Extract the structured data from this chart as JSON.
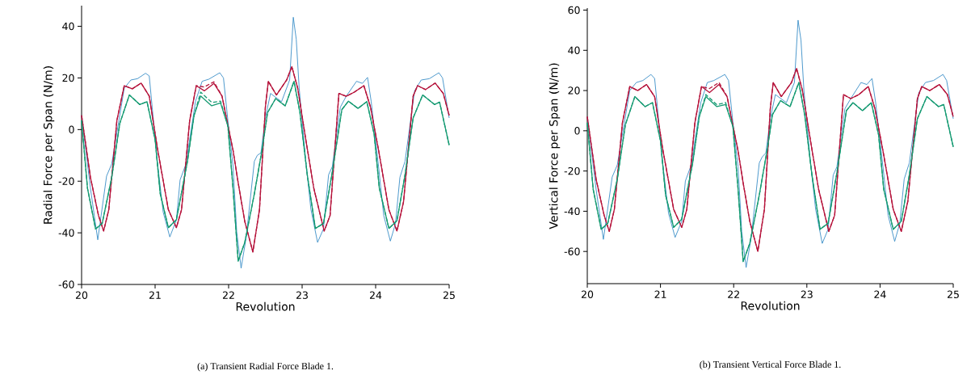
{
  "chart_data": [
    {
      "type": "line",
      "xlabel": "Revolution",
      "ylabel": "Radial Force per Span (N/m)",
      "xlim": [
        20,
        25
      ],
      "ylim": [
        -60,
        48
      ],
      "xticks": [
        20,
        21,
        22,
        23,
        24,
        25
      ],
      "yticks": [
        -60,
        -40,
        -20,
        0,
        20,
        40
      ],
      "annotations": [
        "(a) Transient Radial Force Blade 1."
      ],
      "series": [
        {
          "color": "#3b8fc7",
          "line_style": "solid",
          "x": [
            20,
            20.12,
            20.22,
            20.34,
            20.41,
            20.58,
            20.67,
            20.76,
            20.87,
            20.92,
            20.96,
            21.03,
            21.11,
            21.2,
            21.29,
            21.34,
            21.42,
            21.55,
            21.64,
            21.73,
            21.88,
            21.93,
            21.99,
            22.06,
            22.11,
            22.17,
            22.24,
            22.35,
            22.39,
            22.44,
            22.5,
            22.57,
            22.72,
            22.83,
            22.88,
            22.92,
            22.96,
            23.05,
            23.12,
            23.21,
            23.29,
            23.36,
            23.41,
            23.52,
            23.6,
            23.74,
            23.82,
            23.89,
            23.94,
            24.04,
            24.11,
            24.2,
            24.27,
            24.33,
            24.4,
            24.53,
            24.62,
            24.73,
            24.86,
            24.91,
            25
          ],
          "values": [
            5.5,
            -22.7,
            -42.7,
            -18,
            -13.3,
            16,
            19.2,
            19.7,
            21.8,
            20.8,
            8.7,
            -12.3,
            -32,
            -41.6,
            -35,
            -19.5,
            -13.3,
            11,
            18.7,
            19.5,
            22,
            20,
            3.5,
            -14,
            -39.5,
            -53.7,
            -41.6,
            -12.3,
            -10,
            -9,
            4.5,
            14,
            10.8,
            19.2,
            43.5,
            35,
            16,
            -12.3,
            -31,
            -43.7,
            -38.5,
            -17.5,
            -14.4,
            8.7,
            12.9,
            18.7,
            17.9,
            20.2,
            10.8,
            -14.4,
            -33.3,
            -43.2,
            -36.4,
            -18.5,
            -12.3,
            15,
            19.2,
            19.7,
            22,
            20,
            4.5
          ]
        },
        {
          "color": "#b5123a",
          "line_style": "solid",
          "x": [
            20,
            20.12,
            20.23,
            20.3,
            20.37,
            20.48,
            20.58,
            20.69,
            20.81,
            20.92,
            21.03,
            21.18,
            21.29,
            21.36,
            21.47,
            21.56,
            21.67,
            21.8,
            21.91,
            22.06,
            22.13,
            22.22,
            22.33,
            22.42,
            22.5,
            22.54,
            22.65,
            22.79,
            22.86,
            22.94,
            23.05,
            23.16,
            23.3,
            23.38,
            23.5,
            23.6,
            23.71,
            23.84,
            23.93,
            24.04,
            24.18,
            24.29,
            24.38,
            24.51,
            24.57,
            24.68,
            24.81,
            24.92,
            25
          ],
          "values": [
            5.5,
            -18.5,
            -33.3,
            -39.3,
            -31,
            3.5,
            17,
            15.8,
            18,
            13,
            -7,
            -31,
            -38,
            -31,
            3.5,
            17,
            15,
            17.9,
            13,
            -8,
            -20.6,
            -35.6,
            -47.4,
            -31,
            8.7,
            18.7,
            13.4,
            19.2,
            24.4,
            16,
            -3.9,
            -22.9,
            -39.3,
            -33.3,
            14,
            12.9,
            14.5,
            17,
            8.7,
            -8,
            -31,
            -39.3,
            -27.9,
            12.9,
            17,
            15.5,
            18,
            14,
            5.5
          ]
        },
        {
          "color": "#b5123a",
          "line_style": "dashed",
          "x": [
            20,
            20.12,
            20.23,
            20.3,
            20.37,
            20.48,
            20.58,
            20.69,
            20.81,
            20.92,
            21.03,
            21.18,
            21.29,
            21.36,
            21.47,
            21.56,
            21.67,
            21.8,
            21.91,
            22.06,
            22.13,
            22.22,
            22.33,
            22.42,
            22.5,
            22.54,
            22.65,
            22.79,
            22.86,
            22.94,
            23.05,
            23.16,
            23.3,
            23.38,
            23.5,
            23.6,
            23.71,
            23.84,
            23.93,
            24.04,
            24.18,
            24.29,
            24.38,
            24.51,
            24.57,
            24.68,
            24.81,
            24.92,
            25
          ],
          "values": [
            5.5,
            -18.5,
            -33.3,
            -39.3,
            -31,
            3.5,
            17,
            15.8,
            18,
            13,
            -7,
            -31,
            -38,
            -31,
            3.5,
            17,
            16.5,
            18.5,
            13,
            -8,
            -20.6,
            -35.6,
            -47.4,
            -31,
            8.7,
            18.7,
            13.4,
            19.2,
            24.4,
            16,
            -3.9,
            -22.9,
            -39.3,
            -33.3,
            14,
            12.9,
            14.5,
            17,
            8.7,
            -8,
            -31,
            -39.3,
            -27.9,
            12.9,
            17,
            15.5,
            18,
            14,
            5.5
          ]
        },
        {
          "color": "#159a72",
          "line_style": "solid",
          "x": [
            20,
            20.08,
            20.19,
            20.28,
            20.41,
            20.52,
            20.65,
            20.79,
            20.89,
            21,
            21.07,
            21.18,
            21.29,
            21.44,
            21.53,
            21.62,
            21.77,
            21.89,
            21.99,
            22.06,
            22.13,
            22.22,
            22.35,
            22.46,
            22.53,
            22.64,
            22.77,
            22.89,
            22.97,
            23.07,
            23.18,
            23.29,
            23.41,
            23.54,
            23.63,
            23.76,
            23.88,
            23.98,
            24.05,
            24.18,
            24.29,
            24.4,
            24.51,
            24.64,
            24.8,
            24.87,
            25
          ],
          "values": [
            3.5,
            -22.7,
            -38.5,
            -36.4,
            -18.5,
            2.4,
            13.4,
            9.7,
            10.8,
            -3.9,
            -24.9,
            -38,
            -34.9,
            -12.3,
            5.5,
            13,
            9.2,
            10.3,
            1.4,
            -22.7,
            -51,
            -43.7,
            -24.9,
            -7,
            6.6,
            12,
            9.2,
            18.7,
            6.6,
            -17.5,
            -38.3,
            -36.4,
            -16.5,
            7.7,
            11,
            8.2,
            10.8,
            -1.8,
            -22.7,
            -38.3,
            -35.3,
            -17.5,
            4.5,
            13.4,
            9.7,
            10.6,
            -6
          ]
        },
        {
          "color": "#159a72",
          "line_style": "dashed",
          "x": [
            20,
            20.08,
            20.19,
            20.28,
            20.41,
            20.52,
            20.65,
            20.79,
            20.89,
            21,
            21.07,
            21.18,
            21.29,
            21.44,
            21.53,
            21.62,
            21.77,
            21.89,
            21.99,
            22.06,
            22.13,
            22.22,
            22.35,
            22.46,
            22.53,
            22.64,
            22.77,
            22.89,
            22.97,
            23.07,
            23.18,
            23.29,
            23.41,
            23.54,
            23.63,
            23.76,
            23.88,
            23.98,
            24.05,
            24.18,
            24.29,
            24.4,
            24.51,
            24.64,
            24.8,
            24.87,
            25
          ],
          "values": [
            3.5,
            -22.7,
            -38.5,
            -36.4,
            -18.5,
            2.4,
            13.4,
            9.7,
            10.8,
            -3.9,
            -24.9,
            -38,
            -34.9,
            -12.3,
            5.5,
            14.5,
            10.5,
            11,
            1.4,
            -22.7,
            -51,
            -43.7,
            -24.9,
            -7,
            6.6,
            12,
            9.2,
            18.7,
            6.6,
            -17.5,
            -38.3,
            -36.4,
            -16.5,
            7.7,
            11,
            8.2,
            10.8,
            -1.8,
            -22.7,
            -38.3,
            -35.3,
            -17.5,
            4.5,
            13.4,
            9.7,
            10.6,
            -6
          ]
        }
      ]
    },
    {
      "type": "line",
      "xlabel": "Revolution",
      "ylabel": "Vertical Force per Span (N/m)",
      "xlim": [
        20,
        25
      ],
      "ylim": [
        -76,
        61
      ],
      "xticks": [
        20,
        21,
        22,
        23,
        24,
        25
      ],
      "yticks": [
        -60,
        -40,
        -20,
        0,
        20,
        40,
        60
      ],
      "annotations": [
        "(b) Transient Vertical Force Blade 1."
      ],
      "series": [
        {
          "color": "#3b8fc7",
          "line_style": "solid",
          "x": [
            20,
            20.12,
            20.22,
            20.34,
            20.41,
            20.58,
            20.67,
            20.76,
            20.87,
            20.92,
            20.96,
            21.03,
            21.11,
            21.2,
            21.29,
            21.34,
            21.42,
            21.55,
            21.64,
            21.73,
            21.88,
            21.93,
            21.99,
            22.06,
            22.11,
            22.17,
            22.24,
            22.35,
            22.39,
            22.44,
            22.5,
            22.57,
            22.72,
            22.83,
            22.88,
            22.92,
            22.96,
            23.05,
            23.12,
            23.21,
            23.29,
            23.36,
            23.41,
            23.52,
            23.6,
            23.74,
            23.82,
            23.89,
            23.94,
            24.04,
            24.11,
            24.2,
            24.27,
            24.33,
            24.4,
            24.53,
            24.62,
            24.73,
            24.86,
            24.91,
            25
          ],
          "values": [
            7,
            -29,
            -54,
            -23,
            -17,
            20,
            24,
            25,
            28,
            26,
            11,
            -16,
            -41,
            -53,
            -45,
            -25,
            -17,
            14,
            24,
            25,
            28,
            25,
            4,
            -18,
            -50,
            -68,
            -53,
            -16,
            -13,
            -11,
            6,
            18,
            14,
            24,
            55,
            45,
            20,
            -16,
            -39,
            -56,
            -49,
            -22,
            -18,
            11,
            16,
            24,
            23,
            26,
            14,
            -18,
            -42,
            -55,
            -46,
            -24,
            -16,
            19,
            24,
            25,
            28,
            25,
            6
          ]
        },
        {
          "color": "#b5123a",
          "line_style": "solid",
          "x": [
            20,
            20.12,
            20.23,
            20.3,
            20.37,
            20.48,
            20.58,
            20.69,
            20.81,
            20.92,
            21.03,
            21.18,
            21.29,
            21.36,
            21.47,
            21.56,
            21.67,
            21.8,
            21.91,
            22.06,
            22.13,
            22.22,
            22.33,
            22.42,
            22.5,
            22.54,
            22.65,
            22.79,
            22.86,
            22.94,
            23.05,
            23.16,
            23.3,
            23.38,
            23.5,
            23.6,
            23.71,
            23.84,
            23.93,
            24.04,
            24.18,
            24.29,
            24.38,
            24.51,
            24.57,
            24.68,
            24.81,
            24.92,
            25
          ],
          "values": [
            7,
            -24,
            -42,
            -50,
            -39,
            4,
            22,
            20,
            23,
            17,
            -9,
            -39,
            -48,
            -39,
            4,
            22,
            19,
            23,
            17,
            -10,
            -26,
            -45,
            -60,
            -39,
            11,
            24,
            17,
            24,
            31,
            20,
            -5,
            -29,
            -50,
            -42,
            18,
            16,
            18,
            22,
            11,
            -10,
            -39,
            -50,
            -35,
            16,
            22,
            20,
            23,
            18,
            7
          ]
        },
        {
          "color": "#b5123a",
          "line_style": "dashed",
          "x": [
            20,
            20.12,
            20.23,
            20.3,
            20.37,
            20.48,
            20.58,
            20.69,
            20.81,
            20.92,
            21.03,
            21.18,
            21.29,
            21.36,
            21.47,
            21.56,
            21.67,
            21.8,
            21.91,
            22.06,
            22.13,
            22.22,
            22.33,
            22.42,
            22.5,
            22.54,
            22.65,
            22.79,
            22.86,
            22.94,
            23.05,
            23.16,
            23.3,
            23.38,
            23.5,
            23.6,
            23.71,
            23.84,
            23.93,
            24.04,
            24.18,
            24.29,
            24.38,
            24.51,
            24.57,
            24.68,
            24.81,
            24.92,
            25
          ],
          "values": [
            7,
            -24,
            -42,
            -50,
            -39,
            4,
            22,
            20,
            23,
            17,
            -9,
            -39,
            -48,
            -39,
            4,
            22,
            21,
            24,
            17,
            -10,
            -26,
            -45,
            -60,
            -39,
            11,
            24,
            17,
            24,
            31,
            20,
            -5,
            -29,
            -50,
            -42,
            18,
            16,
            18,
            22,
            11,
            -10,
            -39,
            -50,
            -35,
            16,
            22,
            20,
            23,
            18,
            7
          ]
        },
        {
          "color": "#159a72",
          "line_style": "solid",
          "x": [
            20,
            20.08,
            20.19,
            20.28,
            20.41,
            20.52,
            20.65,
            20.79,
            20.89,
            21,
            21.07,
            21.18,
            21.29,
            21.44,
            21.53,
            21.62,
            21.77,
            21.89,
            21.99,
            22.06,
            22.13,
            22.22,
            22.35,
            22.46,
            22.53,
            22.64,
            22.77,
            22.89,
            22.97,
            23.07,
            23.18,
            23.29,
            23.41,
            23.54,
            23.63,
            23.76,
            23.88,
            23.98,
            24.05,
            24.18,
            24.29,
            24.4,
            24.51,
            24.64,
            24.8,
            24.87,
            25
          ],
          "values": [
            4,
            -29,
            -49,
            -46,
            -24,
            3,
            17,
            12,
            14,
            -5,
            -32,
            -48,
            -44,
            -16,
            7,
            17,
            12,
            13,
            2,
            -29,
            -65,
            -56,
            -32,
            -9,
            8,
            15,
            12,
            24,
            8,
            -22,
            -49,
            -46,
            -21,
            10,
            14,
            10,
            14,
            -2,
            -29,
            -49,
            -45,
            -22,
            6,
            17,
            12,
            13,
            -8
          ]
        },
        {
          "color": "#159a72",
          "line_style": "dashed",
          "x": [
            20,
            20.08,
            20.19,
            20.28,
            20.41,
            20.52,
            20.65,
            20.79,
            20.89,
            21,
            21.07,
            21.18,
            21.29,
            21.44,
            21.53,
            21.62,
            21.77,
            21.89,
            21.99,
            22.06,
            22.13,
            22.22,
            22.35,
            22.46,
            22.53,
            22.64,
            22.77,
            22.89,
            22.97,
            23.07,
            23.18,
            23.29,
            23.41,
            23.54,
            23.63,
            23.76,
            23.88,
            23.98,
            24.05,
            24.18,
            24.29,
            24.4,
            24.51,
            24.64,
            24.8,
            24.87,
            25
          ],
          "values": [
            4,
            -29,
            -49,
            -46,
            -24,
            3,
            17,
            12,
            14,
            -5,
            -32,
            -48,
            -44,
            -16,
            7,
            18,
            13,
            14,
            2,
            -29,
            -65,
            -56,
            -32,
            -9,
            8,
            15,
            12,
            24,
            8,
            -22,
            -49,
            -46,
            -21,
            10,
            14,
            10,
            14,
            -2,
            -29,
            -49,
            -45,
            -22,
            6,
            17,
            12,
            13,
            -8
          ]
        }
      ]
    }
  ]
}
